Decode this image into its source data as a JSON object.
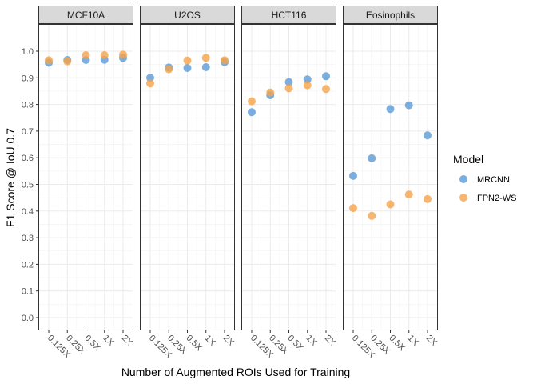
{
  "chart_data": {
    "type": "scatter",
    "xlabel": "Number of Augmented ROIs Used for Training",
    "ylabel": "F1 Score @ IoU 0.7",
    "ylim": [
      0.0,
      1.0
    ],
    "yticks": [
      "0.0",
      "0.1",
      "0.2",
      "0.3",
      "0.4",
      "0.5",
      "0.6",
      "0.7",
      "0.8",
      "0.9",
      "1.0"
    ],
    "categories": [
      "0.125X",
      "0.25X",
      "0.5X",
      "1X",
      "2X"
    ],
    "grid": true,
    "legend": {
      "title": "Model",
      "position": "right",
      "items": [
        {
          "name": "MRCNN",
          "color": "#5b9bd5"
        },
        {
          "name": "FPN2-WS",
          "color": "#f5a24a"
        }
      ]
    },
    "panels": [
      {
        "title": "MCF10A",
        "series": [
          {
            "name": "MRCNN",
            "values": [
              0.957,
              0.967,
              0.967,
              0.968,
              0.975
            ]
          },
          {
            "name": "FPN2-WS",
            "values": [
              0.966,
              0.962,
              0.985,
              0.985,
              0.987
            ]
          }
        ]
      },
      {
        "title": "U2OS",
        "series": [
          {
            "name": "MRCNN",
            "values": [
              0.9,
              0.939,
              0.937,
              0.94,
              0.959
            ]
          },
          {
            "name": "FPN2-WS",
            "values": [
              0.879,
              0.932,
              0.965,
              0.975,
              0.966
            ]
          }
        ]
      },
      {
        "title": "HCT116",
        "series": [
          {
            "name": "MRCNN",
            "values": [
              0.771,
              0.835,
              0.884,
              0.894,
              0.906
            ]
          },
          {
            "name": "FPN2-WS",
            "values": [
              0.812,
              0.845,
              0.861,
              0.872,
              0.858
            ]
          }
        ]
      },
      {
        "title": "Eosinophils",
        "series": [
          {
            "name": "MRCNN",
            "values": [
              0.532,
              0.598,
              0.783,
              0.797,
              0.684
            ]
          },
          {
            "name": "FPN2-WS",
            "values": [
              0.411,
              0.382,
              0.425,
              0.462,
              0.445
            ]
          }
        ]
      }
    ]
  }
}
